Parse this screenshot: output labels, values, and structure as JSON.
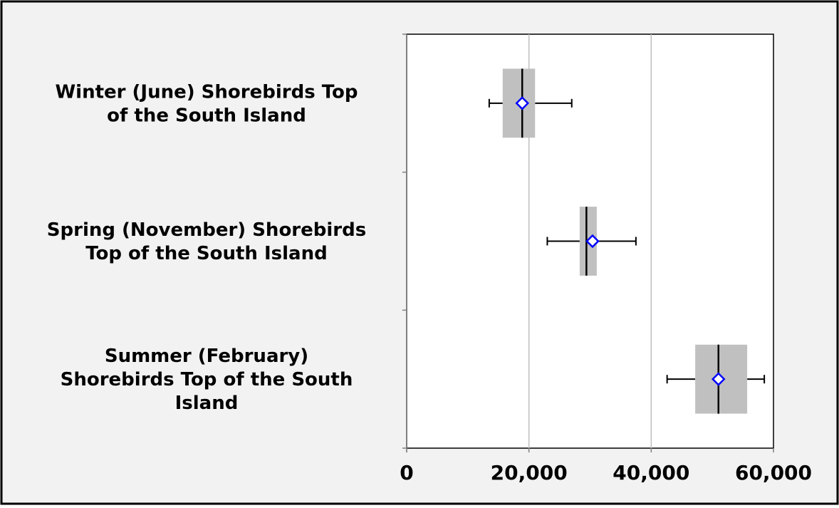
{
  "chart_data": {
    "type": "boxplot",
    "orientation": "horizontal",
    "categories": [
      [
        "Winter (June) Shorebirds Top",
        "of the South Island"
      ],
      [
        "Spring (November) Shorebirds",
        "Top of the South Island"
      ],
      [
        "Summer (February)",
        "Shorebirds Top of the South",
        "Island"
      ]
    ],
    "series": [
      {
        "whisker_low": 13500,
        "q1": 15700,
        "median": 18900,
        "q3": 21000,
        "whisker_high": 27000,
        "mean": 18900
      },
      {
        "whisker_low": 23000,
        "q1": 28300,
        "median": 29400,
        "q3": 31100,
        "whisker_high": 37500,
        "mean": 30400
      },
      {
        "whisker_low": 42600,
        "q1": 47200,
        "median": 51000,
        "q3": 55700,
        "whisker_high": 58500,
        "mean": 51000
      }
    ],
    "xlim": [
      0,
      60000
    ],
    "xticks": [
      0,
      20000,
      40000,
      60000
    ],
    "xtick_labels": [
      "0",
      "20,000",
      "40,000",
      "60,000"
    ],
    "grid": "vertical",
    "colors": {
      "box": "#c0c0c0",
      "median": "#000000",
      "whisker": "#000000",
      "mean_marker": "#0000ff",
      "background": "#f2f2f2",
      "plot_area": "#ffffff",
      "gridline": "#bfbfbf"
    }
  }
}
